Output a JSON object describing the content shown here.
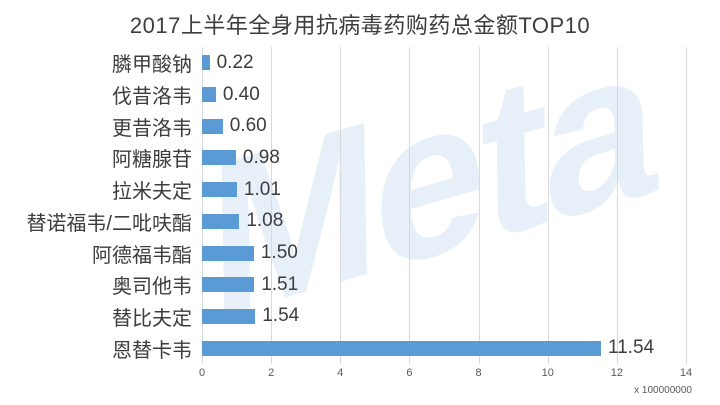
{
  "chart_data": {
    "type": "bar",
    "orientation": "horizontal",
    "title": "2017上半年全身用抗病毒药购药总金额TOP10",
    "categories": [
      "膦甲酸钠",
      "伐昔洛韦",
      "更昔洛韦",
      "阿糖腺苷",
      "拉米夫定",
      "替诺福韦/二吡呋酯",
      "阿德福韦酯",
      "奥司他韦",
      "替比夫定",
      "恩替卡韦"
    ],
    "values": [
      0.22,
      0.4,
      0.6,
      0.98,
      1.01,
      1.08,
      1.5,
      1.51,
      1.54,
      11.54
    ],
    "xlabel": "",
    "ylabel": "",
    "xlim": [
      0,
      14
    ],
    "x_ticks": [
      0,
      2,
      4,
      6,
      8,
      10,
      12,
      14
    ],
    "x_unit_label": "x 100000000",
    "grid": true,
    "legend": false,
    "colors": {
      "bar": "#5b9bd5",
      "gridline": "#d9d9d9",
      "title_text": "#3d3d3d",
      "label_text": "#3d3d3d",
      "tick_text": "#595959"
    }
  },
  "watermark": {
    "text": "Meta",
    "color": "rgba(91,155,213,0.15)"
  }
}
